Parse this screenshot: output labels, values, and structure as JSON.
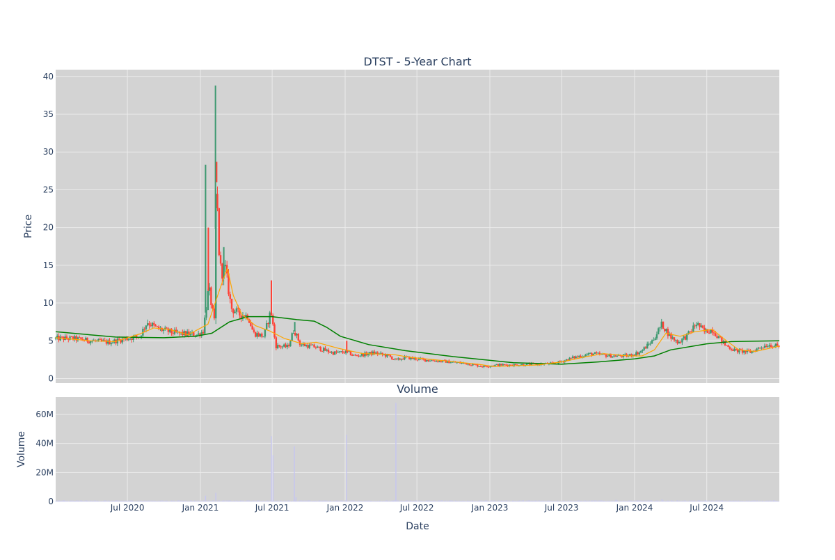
{
  "colors": {
    "plot_bg": "#d3d3d3",
    "grid": "#ebebeb",
    "up": "#3d9970",
    "down": "#ff4136",
    "ma_short": "#ffa500",
    "ma_long": "#008000",
    "volume": "#c6c6f0",
    "text": "#2a3f5f"
  },
  "chart_data": [
    {
      "type": "candlestick",
      "title": "DTST - 5-Year Chart",
      "ylabel": "Price",
      "xlim": [
        "2020-01-02",
        "2024-12-31"
      ],
      "ylim": [
        -0.6,
        40.9
      ],
      "y_ticks": [
        0,
        5,
        10,
        15,
        20,
        25,
        30,
        35,
        40
      ],
      "grid": true,
      "price_path": [
        [
          "2020-01-02",
          5.3
        ],
        [
          "2020-02-15",
          5.3
        ],
        [
          "2020-04-01",
          5.0
        ],
        [
          "2020-05-15",
          4.8
        ],
        [
          "2020-06-20",
          5.2
        ],
        [
          "2020-08-01",
          5.6
        ],
        [
          "2020-08-20",
          7.5
        ],
        [
          "2020-09-15",
          6.6
        ],
        [
          "2020-11-01",
          6.0
        ],
        [
          "2020-12-25",
          5.8
        ],
        [
          "2021-01-08",
          6.3
        ],
        [
          "2021-01-22",
          12.0
        ],
        [
          "2021-02-05",
          7.5
        ],
        [
          "2021-02-10",
          28.0
        ],
        [
          "2021-02-15",
          18.0
        ],
        [
          "2021-02-22",
          14.0
        ],
        [
          "2021-03-05",
          14.5
        ],
        [
          "2021-03-20",
          9.3
        ],
        [
          "2021-04-10",
          8.5
        ],
        [
          "2021-05-01",
          8.3
        ],
        [
          "2021-05-15",
          6.0
        ],
        [
          "2021-06-10",
          5.6
        ],
        [
          "2021-06-28",
          9.0
        ],
        [
          "2021-07-10",
          4.3
        ],
        [
          "2021-08-10",
          4.2
        ],
        [
          "2021-08-25",
          6.5
        ],
        [
          "2021-09-10",
          4.5
        ],
        [
          "2021-10-15",
          4.2
        ],
        [
          "2021-12-01",
          3.4
        ],
        [
          "2022-01-05",
          3.5
        ],
        [
          "2022-01-25",
          3.0
        ],
        [
          "2022-03-15",
          3.4
        ],
        [
          "2022-04-20",
          3.0
        ],
        [
          "2022-05-10",
          2.4
        ],
        [
          "2022-06-01",
          2.8
        ],
        [
          "2022-07-15",
          2.5
        ],
        [
          "2022-09-01",
          2.3
        ],
        [
          "2022-11-01",
          2.0
        ],
        [
          "2022-12-15",
          1.6
        ],
        [
          "2023-01-20",
          1.8
        ],
        [
          "2023-03-01",
          1.8
        ],
        [
          "2023-05-01",
          1.9
        ],
        [
          "2023-06-15",
          2.0
        ],
        [
          "2023-08-01",
          2.8
        ],
        [
          "2023-09-15",
          3.3
        ],
        [
          "2023-11-01",
          3.0
        ],
        [
          "2023-12-15",
          3.0
        ],
        [
          "2024-01-15",
          3.5
        ],
        [
          "2024-02-15",
          5.0
        ],
        [
          "2024-03-10",
          7.2
        ],
        [
          "2024-04-01",
          5.5
        ],
        [
          "2024-04-20",
          4.8
        ],
        [
          "2024-05-15",
          5.8
        ],
        [
          "2024-06-05",
          7.3
        ],
        [
          "2024-06-25",
          6.2
        ],
        [
          "2024-07-15",
          6.5
        ],
        [
          "2024-08-15",
          4.5
        ],
        [
          "2024-09-10",
          3.7
        ],
        [
          "2024-10-20",
          3.5
        ],
        [
          "2024-11-15",
          4.2
        ],
        [
          "2024-12-05",
          4.5
        ],
        [
          "2024-12-31",
          4.2
        ]
      ],
      "spikes": [
        {
          "date": "2021-01-14",
          "high": 28.3
        },
        {
          "date": "2021-01-21",
          "high": 20.0
        },
        {
          "date": "2021-02-08",
          "high": 38.8
        },
        {
          "date": "2021-02-11",
          "high": 28.7
        },
        {
          "date": "2021-03-01",
          "high": 17.4
        },
        {
          "date": "2021-06-29",
          "high": 13.0
        },
        {
          "date": "2021-08-27",
          "high": 7.5
        },
        {
          "date": "2022-01-05",
          "high": 5.0
        }
      ],
      "ma_short": [
        [
          "2020-01-02",
          5.4
        ],
        [
          "2020-04-01",
          5.0
        ],
        [
          "2020-06-01",
          4.9
        ],
        [
          "2020-08-01",
          5.9
        ],
        [
          "2020-09-05",
          6.7
        ],
        [
          "2020-10-15",
          6.5
        ],
        [
          "2020-12-01",
          5.8
        ],
        [
          "2021-01-20",
          7.2
        ],
        [
          "2021-02-20",
          12.0
        ],
        [
          "2021-03-10",
          14.6
        ],
        [
          "2021-03-25",
          11.0
        ],
        [
          "2021-04-15",
          8.5
        ],
        [
          "2021-05-20",
          7.0
        ],
        [
          "2021-06-25",
          6.3
        ],
        [
          "2021-08-01",
          5.3
        ],
        [
          "2021-09-15",
          4.6
        ],
        [
          "2021-10-20",
          4.8
        ],
        [
          "2021-12-15",
          4.0
        ],
        [
          "2022-02-15",
          3.3
        ],
        [
          "2022-05-01",
          3.2
        ],
        [
          "2022-06-15",
          2.8
        ],
        [
          "2022-09-01",
          2.4
        ],
        [
          "2022-12-01",
          1.9
        ],
        [
          "2023-01-10",
          1.6
        ],
        [
          "2023-05-01",
          1.8
        ],
        [
          "2023-07-01",
          2.2
        ],
        [
          "2023-09-01",
          2.9
        ],
        [
          "2023-10-15",
          3.3
        ],
        [
          "2023-12-15",
          3.0
        ],
        [
          "2024-01-20",
          3.0
        ],
        [
          "2024-02-20",
          3.8
        ],
        [
          "2024-03-20",
          6.0
        ],
        [
          "2024-04-25",
          5.6
        ],
        [
          "2024-06-01",
          6.2
        ],
        [
          "2024-07-15",
          6.5
        ],
        [
          "2024-08-20",
          5.0
        ],
        [
          "2024-09-20",
          3.8
        ],
        [
          "2024-11-01",
          3.6
        ],
        [
          "2024-12-31",
          4.3
        ]
      ],
      "ma_long": [
        [
          "2020-01-02",
          6.2
        ],
        [
          "2020-06-01",
          5.5
        ],
        [
          "2020-10-01",
          5.4
        ],
        [
          "2020-12-20",
          5.6
        ],
        [
          "2021-01-30",
          6.0
        ],
        [
          "2021-03-15",
          7.5
        ],
        [
          "2021-05-01",
          8.2
        ],
        [
          "2021-07-01",
          8.2
        ],
        [
          "2021-09-01",
          7.8
        ],
        [
          "2021-10-15",
          7.6
        ],
        [
          "2021-11-15",
          6.8
        ],
        [
          "2021-12-20",
          5.6
        ],
        [
          "2022-03-01",
          4.5
        ],
        [
          "2022-06-01",
          3.7
        ],
        [
          "2022-10-01",
          2.9
        ],
        [
          "2023-03-01",
          2.1
        ],
        [
          "2023-07-01",
          1.9
        ],
        [
          "2023-10-01",
          2.2
        ],
        [
          "2024-01-01",
          2.6
        ],
        [
          "2024-02-20",
          3.0
        ],
        [
          "2024-04-01",
          3.8
        ],
        [
          "2024-07-01",
          4.6
        ],
        [
          "2024-09-01",
          4.9
        ],
        [
          "2024-12-31",
          5.0
        ]
      ]
    },
    {
      "type": "bar",
      "title": "Volume",
      "ylabel": "Volume",
      "xlabel": "Date",
      "ylim": [
        0,
        72000000
      ],
      "y_ticks": [
        0,
        20000000,
        40000000,
        60000000
      ],
      "y_tick_labels": [
        "0",
        "20M",
        "40M",
        "60M"
      ],
      "x_ticks": [
        "2020-07-01",
        "2021-01-01",
        "2021-07-01",
        "2022-01-01",
        "2022-07-01",
        "2023-01-01",
        "2023-07-01",
        "2024-01-01",
        "2024-07-01"
      ],
      "x_tick_labels": [
        "Jul 2020",
        "Jan 2021",
        "Jul 2021",
        "Jan 2022",
        "Jul 2022",
        "Jan 2023",
        "Jul 2023",
        "Jan 2024",
        "Jul 2024"
      ],
      "grid": true,
      "spikes": [
        {
          "date": "2021-01-14",
          "value": 4000000
        },
        {
          "date": "2021-02-09",
          "value": 6000000
        },
        {
          "date": "2021-06-29",
          "value": 45000000
        },
        {
          "date": "2021-07-03",
          "value": 32000000
        },
        {
          "date": "2021-08-26",
          "value": 38000000
        },
        {
          "date": "2021-08-30",
          "value": 3000000
        },
        {
          "date": "2022-01-05",
          "value": 46000000
        },
        {
          "date": "2022-05-09",
          "value": 68000000
        },
        {
          "date": "2023-11-15",
          "value": 1200000
        },
        {
          "date": "2024-03-10",
          "value": 1500000
        }
      ],
      "baseline_volume": 400000
    }
  ]
}
